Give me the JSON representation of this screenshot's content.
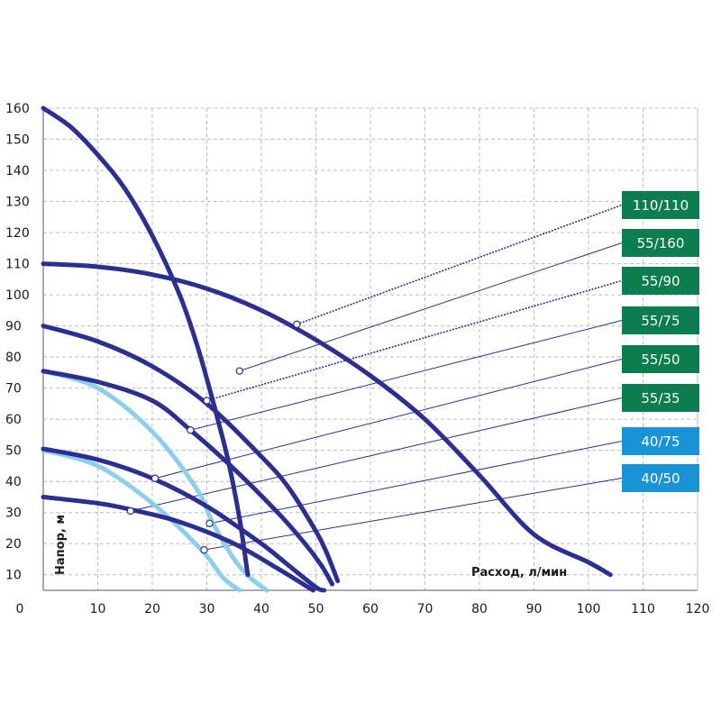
{
  "chart_data": {
    "type": "line",
    "xlabel": "Расход, л/мин",
    "ylabel": "Напор, м",
    "xlim": [
      0,
      120
    ],
    "ylim": [
      5,
      160
    ],
    "x_ticks": [
      0,
      10,
      20,
      30,
      40,
      50,
      60,
      70,
      80,
      90,
      100,
      110,
      120
    ],
    "y_ticks": [
      10,
      20,
      30,
      40,
      50,
      60,
      70,
      80,
      90,
      100,
      110,
      120,
      130,
      140,
      150,
      160
    ],
    "grid": true,
    "series": [
      {
        "name": "110/110",
        "color": "#2b2f8f",
        "badge_color": "#0b7d4f",
        "x": [
          0,
          10,
          20,
          30,
          40,
          50,
          60,
          70,
          80,
          90,
          100,
          104
        ],
        "y": [
          110,
          109,
          106.5,
          102,
          95,
          85.5,
          74,
          60,
          42,
          23,
          14,
          10
        ],
        "marker": [
          46.5,
          90.5
        ]
      },
      {
        "name": "55/160",
        "color": "#2b2f8f",
        "badge_color": "#0b7d4f",
        "x": [
          0,
          5,
          10,
          15,
          20,
          25,
          28,
          30,
          32,
          34,
          36,
          37.5
        ],
        "y": [
          160,
          154,
          145,
          134,
          119,
          100,
          85,
          73,
          60,
          46,
          28,
          10
        ],
        "marker": [
          36,
          75.5
        ]
      },
      {
        "name": "55/90",
        "color": "#2b2f8f",
        "badge_color": "#0b7d4f",
        "x": [
          0,
          10,
          20,
          30,
          40,
          45,
          50,
          52,
          54
        ],
        "y": [
          90,
          85,
          77,
          65,
          48,
          38,
          24,
          17,
          8
        ],
        "marker": [
          30,
          66
        ]
      },
      {
        "name": "55/75",
        "color": "#2b2f8f",
        "badge_color": "#0b7d4f",
        "x": [
          0,
          10,
          20,
          27,
          35,
          43,
          48,
          51,
          53
        ],
        "y": [
          75.5,
          72,
          66,
          56.5,
          44,
          30,
          20,
          13,
          7
        ],
        "marker": [
          27,
          56.5
        ]
      },
      {
        "name": "55/50",
        "color": "#2b2f8f",
        "badge_color": "#0b7d4f",
        "x": [
          0,
          10,
          20,
          30,
          40,
          45,
          50,
          51.5
        ],
        "y": [
          50.5,
          47,
          41,
          32,
          20,
          13,
          6,
          5
        ],
        "marker": [
          20.5,
          41
        ]
      },
      {
        "name": "55/35",
        "color": "#2b2f8f",
        "badge_color": "#0b7d4f",
        "x": [
          0,
          10,
          16,
          25,
          35,
          43,
          49.5
        ],
        "y": [
          35,
          33,
          31,
          27,
          20,
          12,
          5
        ],
        "marker": [
          16,
          30.5
        ]
      },
      {
        "name": "40/75",
        "color": "#8dcdee",
        "badge_color": "#1a93d6",
        "x": [
          0,
          10,
          20,
          28,
          31,
          35,
          38,
          41
        ],
        "y": [
          75.5,
          70,
          56,
          38,
          27,
          15,
          9,
          5
        ],
        "marker": [
          30.5,
          26.5
        ]
      },
      {
        "name": "40/50",
        "color": "#8dcdee",
        "badge_color": "#1a93d6",
        "x": [
          0,
          10,
          20,
          29,
          33,
          36
        ],
        "y": [
          50,
          45,
          33,
          18,
          9,
          5
        ],
        "marker": [
          29.5,
          18
        ]
      }
    ]
  }
}
